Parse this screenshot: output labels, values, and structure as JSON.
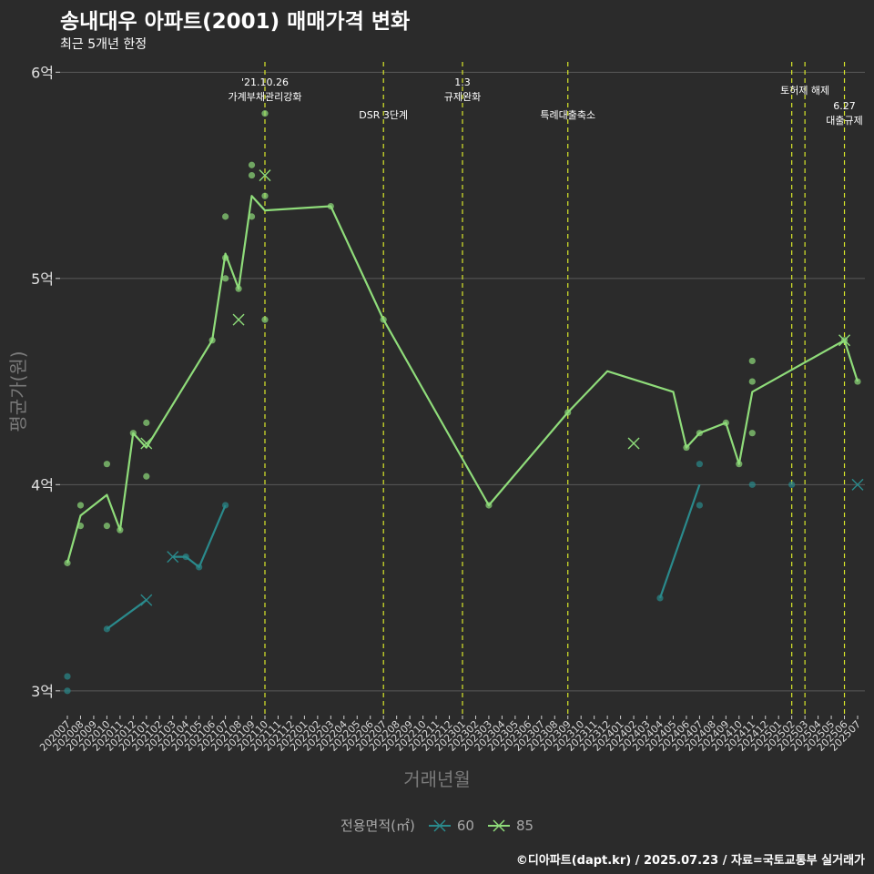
{
  "chart_data": {
    "type": "line",
    "title": "송내대우 아파트(2001) 매매가격 변화",
    "subtitle": "최근 5개년 한정",
    "xlabel": "거래년월",
    "ylabel": "평균가(원)",
    "caption": "©디아파트(dapt.kr) / 2025.07.23 / 자료=국토교통부 실거래가",
    "legend_title": "전용면적(㎡)",
    "ylim": [
      2.88,
      6.05
    ],
    "yticks": [
      {
        "v": 3,
        "label": "3억"
      },
      {
        "v": 4,
        "label": "4억"
      },
      {
        "v": 5,
        "label": "5억"
      },
      {
        "v": 6,
        "label": "6억"
      }
    ],
    "x_categories": [
      "202007",
      "202008",
      "202009",
      "202010",
      "202011",
      "202012",
      "202101",
      "202102",
      "202103",
      "202104",
      "202105",
      "202106",
      "202107",
      "202108",
      "202109",
      "202110",
      "202111",
      "202112",
      "202201",
      "202202",
      "202203",
      "202204",
      "202205",
      "202206",
      "202207",
      "202208",
      "202209",
      "202210",
      "202211",
      "202212",
      "202301",
      "202302",
      "202303",
      "202304",
      "202305",
      "202306",
      "202307",
      "202308",
      "202309",
      "202310",
      "202311",
      "202312",
      "202401",
      "202402",
      "202403",
      "202404",
      "202405",
      "202406",
      "202407",
      "202408",
      "202409",
      "202410",
      "202411",
      "202412",
      "202501",
      "202502",
      "202503",
      "202504",
      "202505",
      "202506",
      "202507"
    ],
    "events": [
      {
        "x": 15,
        "lines": [
          "'21.10.26",
          "가계부채관리강화"
        ]
      },
      {
        "x": 24,
        "lines": [
          "DSR 3단계"
        ]
      },
      {
        "x": 30,
        "lines": [
          "1.3",
          "규제완화"
        ]
      },
      {
        "x": 38,
        "lines": [
          "특례대출축소"
        ]
      },
      {
        "x": 55,
        "lines": []
      },
      {
        "x": 56,
        "lines": [
          "토허제 해제"
        ]
      },
      {
        "x": 59,
        "lines": [
          "6.27",
          "대출규제"
        ]
      }
    ],
    "series": [
      {
        "name": "60",
        "color": "#2a8a8c",
        "segments": [
          [
            [
              3,
              3.3
            ],
            [
              6,
              3.44
            ]
          ],
          [
            [
              8,
              3.65
            ],
            [
              9,
              3.65
            ],
            [
              10,
              3.6
            ],
            [
              12,
              3.9
            ]
          ],
          [
            [
              45,
              3.45
            ],
            [
              48,
              4.0
            ]
          ]
        ],
        "points": [
          [
            0,
            3.07
          ],
          [
            0,
            3.0
          ],
          [
            3,
            3.3
          ],
          [
            9,
            3.65
          ],
          [
            10,
            3.6
          ],
          [
            12,
            3.9
          ],
          [
            45,
            3.45
          ],
          [
            48,
            3.9
          ],
          [
            48,
            4.1
          ],
          [
            52,
            4.0
          ],
          [
            55,
            4.0
          ]
        ],
        "markers": [
          [
            6,
            3.44
          ],
          [
            8,
            3.65
          ],
          [
            60,
            4.0
          ]
        ]
      },
      {
        "name": "85",
        "color": "#8fdc7a",
        "segments": [
          [
            [
              0,
              3.62
            ],
            [
              1,
              3.85
            ],
            [
              3,
              3.95
            ],
            [
              4,
              3.78
            ],
            [
              5,
              4.25
            ],
            [
              6,
              4.18
            ],
            [
              11,
              4.7
            ],
            [
              12,
              5.12
            ],
            [
              13,
              4.95
            ],
            [
              14,
              5.4
            ],
            [
              15,
              5.33
            ],
            [
              20,
              5.35
            ],
            [
              24,
              4.8
            ],
            [
              32,
              3.9
            ],
            [
              38,
              4.35
            ],
            [
              41,
              4.55
            ],
            [
              46,
              4.45
            ],
            [
              47,
              4.18
            ],
            [
              48,
              4.25
            ],
            [
              50,
              4.3
            ],
            [
              51,
              4.1
            ],
            [
              52,
              4.45
            ],
            [
              59,
              4.7
            ],
            [
              60,
              4.5
            ]
          ]
        ],
        "points": [
          [
            0,
            3.62
          ],
          [
            1,
            3.9
          ],
          [
            1,
            3.8
          ],
          [
            3,
            4.1
          ],
          [
            3,
            3.8
          ],
          [
            4,
            3.78
          ],
          [
            5,
            4.25
          ],
          [
            6,
            4.3
          ],
          [
            6,
            4.04
          ],
          [
            11,
            4.7
          ],
          [
            12,
            5.3
          ],
          [
            12,
            5.1
          ],
          [
            12,
            5.0
          ],
          [
            13,
            4.95
          ],
          [
            14,
            5.55
          ],
          [
            14,
            5.5
          ],
          [
            14,
            5.3
          ],
          [
            15,
            5.8
          ],
          [
            15,
            5.4
          ],
          [
            15,
            4.8
          ],
          [
            20,
            5.35
          ],
          [
            24,
            4.8
          ],
          [
            32,
            3.9
          ],
          [
            38,
            4.35
          ],
          [
            47,
            4.18
          ],
          [
            48,
            4.25
          ],
          [
            50,
            4.3
          ],
          [
            51,
            4.1
          ],
          [
            52,
            4.6
          ],
          [
            52,
            4.5
          ],
          [
            52,
            4.25
          ],
          [
            59,
            4.7
          ],
          [
            60,
            4.5
          ]
        ],
        "markers": [
          [
            6,
            4.2
          ],
          [
            13,
            4.8
          ],
          [
            15,
            5.5
          ],
          [
            43,
            4.2
          ],
          [
            59,
            4.7
          ]
        ]
      }
    ]
  }
}
